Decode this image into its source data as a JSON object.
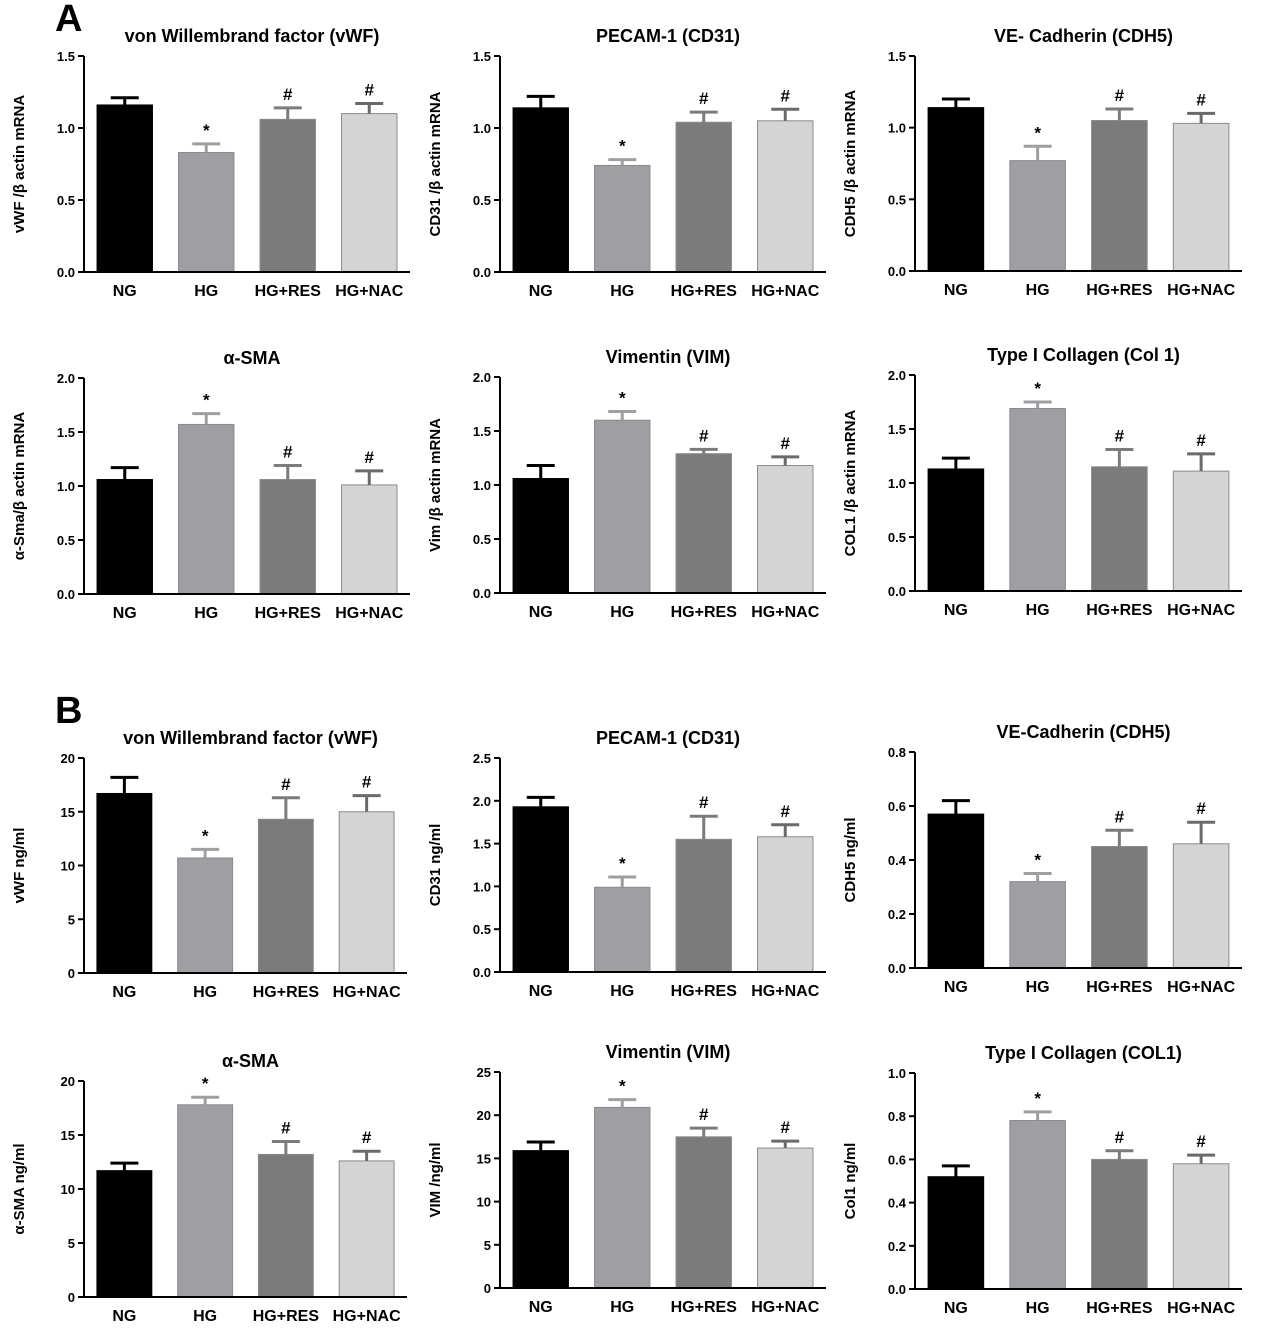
{
  "panels": [
    {
      "label": "A"
    },
    {
      "label": "B"
    }
  ],
  "chart_data": [
    {
      "type": "bar",
      "title": "von Willembrand factor (vWF)",
      "ylabel": "vWF /β actin mRNA",
      "categories": [
        "NG",
        "HG",
        "HG+RES",
        "HG+NAC"
      ],
      "values": [
        1.16,
        0.83,
        1.06,
        1.1
      ],
      "errors": [
        0.05,
        0.06,
        0.08,
        0.07
      ],
      "annotations": [
        "",
        "*",
        "#",
        "#"
      ],
      "ylim": [
        0,
        1.5
      ],
      "yticks": [
        0.0,
        0.5,
        1.0,
        1.5
      ],
      "tick_labels": [
        "0.0",
        "0.5",
        "1.0",
        "1.5"
      ]
    },
    {
      "type": "bar",
      "title": "PECAM-1 (CD31)",
      "ylabel": "CD31 /β actin mRNA",
      "categories": [
        "NG",
        "HG",
        "HG+RES",
        "HG+NAC"
      ],
      "values": [
        1.14,
        0.74,
        1.04,
        1.05
      ],
      "errors": [
        0.08,
        0.04,
        0.07,
        0.08
      ],
      "annotations": [
        "",
        "*",
        "#",
        "#"
      ],
      "ylim": [
        0,
        1.5
      ],
      "yticks": [
        0.0,
        0.5,
        1.0,
        1.5
      ],
      "tick_labels": [
        "0.0",
        "0.5",
        "1.0",
        "1.5"
      ]
    },
    {
      "type": "bar",
      "title": "VE- Cadherin (CDH5)",
      "ylabel": "CDH5 /β actin mRNA",
      "categories": [
        "NG",
        "HG",
        "HG+RES",
        "HG+NAC"
      ],
      "values": [
        1.14,
        0.77,
        1.05,
        1.03
      ],
      "errors": [
        0.06,
        0.1,
        0.08,
        0.07
      ],
      "annotations": [
        "",
        "*",
        "#",
        "#"
      ],
      "ylim": [
        0,
        1.5
      ],
      "yticks": [
        0.0,
        0.5,
        1.0,
        1.5
      ],
      "tick_labels": [
        "0.0",
        "0.5",
        "1.0",
        "1.5"
      ]
    },
    {
      "type": "bar",
      "title": "α-SMA",
      "ylabel": "α-Sma/β actin mRNA",
      "categories": [
        "NG",
        "HG",
        "HG+RES",
        "HG+NAC"
      ],
      "values": [
        1.06,
        1.57,
        1.06,
        1.01
      ],
      "errors": [
        0.11,
        0.1,
        0.13,
        0.13
      ],
      "annotations": [
        "",
        "*",
        "#",
        "#"
      ],
      "ylim": [
        0,
        2.0
      ],
      "yticks": [
        0.0,
        0.5,
        1.0,
        1.5,
        2.0
      ],
      "tick_labels": [
        "0.0",
        "0.5",
        "1.0",
        "1.5",
        "2.0"
      ]
    },
    {
      "type": "bar",
      "title": "Vimentin (VIM)",
      "ylabel": "Vim /β actin mRNA",
      "categories": [
        "NG",
        "HG",
        "HG+RES",
        "HG+NAC"
      ],
      "values": [
        1.06,
        1.6,
        1.29,
        1.18
      ],
      "errors": [
        0.12,
        0.08,
        0.04,
        0.08
      ],
      "annotations": [
        "",
        "*",
        "#",
        "#"
      ],
      "ylim": [
        0,
        2.0
      ],
      "yticks": [
        0.0,
        0.5,
        1.0,
        1.5,
        2.0
      ],
      "tick_labels": [
        "0.0",
        "0.5",
        "1.0",
        "1.5",
        "2.0"
      ]
    },
    {
      "type": "bar",
      "title": "Type I Collagen (Col 1)",
      "ylabel": "COL1 /β actin mRNA",
      "categories": [
        "NG",
        "HG",
        "HG+RES",
        "HG+NAC"
      ],
      "values": [
        1.13,
        1.69,
        1.15,
        1.11
      ],
      "errors": [
        0.1,
        0.06,
        0.16,
        0.16
      ],
      "annotations": [
        "",
        "*",
        "#",
        "#"
      ],
      "ylim": [
        0,
        2.0
      ],
      "yticks": [
        0.0,
        0.5,
        1.0,
        1.5,
        2.0
      ],
      "tick_labels": [
        "0.0",
        "0.5",
        "1.0",
        "1.5",
        "2.0"
      ]
    },
    {
      "type": "bar",
      "title": "von Willembrand factor (vWF)",
      "ylabel": "vWF ng/ml",
      "categories": [
        "NG",
        "HG",
        "HG+RES",
        "HG+NAC"
      ],
      "values": [
        16.7,
        10.7,
        14.3,
        15.0
      ],
      "errors": [
        1.5,
        0.8,
        2.0,
        1.5
      ],
      "annotations": [
        "",
        "*",
        "#",
        "#"
      ],
      "ylim": [
        0,
        20
      ],
      "yticks": [
        0,
        5,
        10,
        15,
        20
      ],
      "tick_labels": [
        "0",
        "5",
        "10",
        "15",
        "20"
      ]
    },
    {
      "type": "bar",
      "title": "PECAM-1 (CD31)",
      "ylabel": "CD31 ng/ml",
      "categories": [
        "NG",
        "HG",
        "HG+RES",
        "HG+NAC"
      ],
      "values": [
        1.93,
        0.99,
        1.55,
        1.58
      ],
      "errors": [
        0.11,
        0.12,
        0.27,
        0.14
      ],
      "annotations": [
        "",
        "*",
        "#",
        "#"
      ],
      "ylim": [
        0,
        2.5
      ],
      "yticks": [
        0.0,
        0.5,
        1.0,
        1.5,
        2.0,
        2.5
      ],
      "tick_labels": [
        "0.0",
        "0.5",
        "1.0",
        "1.5",
        "2.0",
        "2.5"
      ]
    },
    {
      "type": "bar",
      "title": "VE-Cadherin (CDH5)",
      "ylabel": "CDH5 ng/ml",
      "categories": [
        "NG",
        "HG",
        "HG+RES",
        "HG+NAC"
      ],
      "values": [
        0.57,
        0.32,
        0.45,
        0.46
      ],
      "errors": [
        0.05,
        0.03,
        0.06,
        0.08
      ],
      "annotations": [
        "",
        "*",
        "#",
        "#"
      ],
      "ylim": [
        0,
        0.8
      ],
      "yticks": [
        0.0,
        0.2,
        0.4,
        0.6,
        0.8
      ],
      "tick_labels": [
        "0.0",
        "0.2",
        "0.4",
        "0.6",
        "0.8"
      ]
    },
    {
      "type": "bar",
      "title": "α-SMA",
      "ylabel": "α-SMA ng/ml",
      "categories": [
        "NG",
        "HG",
        "HG+RES",
        "HG+NAC"
      ],
      "values": [
        11.7,
        17.8,
        13.2,
        12.6
      ],
      "errors": [
        0.7,
        0.7,
        1.2,
        0.9
      ],
      "annotations": [
        "",
        "*",
        "#",
        "#"
      ],
      "ylim": [
        0,
        20
      ],
      "yticks": [
        0,
        5,
        10,
        15,
        20
      ],
      "tick_labels": [
        "0",
        "5",
        "10",
        "15",
        "20"
      ]
    },
    {
      "type": "bar",
      "title": "Vimentin (VIM)",
      "ylabel": "VIM /ng/ml",
      "categories": [
        "NG",
        "HG",
        "HG+RES",
        "HG+NAC"
      ],
      "values": [
        15.9,
        20.9,
        17.5,
        16.2
      ],
      "errors": [
        1.0,
        0.9,
        1.0,
        0.8
      ],
      "annotations": [
        "",
        "*",
        "#",
        "#"
      ],
      "ylim": [
        0,
        25
      ],
      "yticks": [
        0,
        5,
        10,
        15,
        20,
        25
      ],
      "tick_labels": [
        "0",
        "5",
        "10",
        "15",
        "20",
        "25"
      ]
    },
    {
      "type": "bar",
      "title": "Type I Collagen (COL1)",
      "ylabel": "Col1 ng/ml",
      "categories": [
        "NG",
        "HG",
        "HG+RES",
        "HG+NAC"
      ],
      "values": [
        0.52,
        0.78,
        0.6,
        0.58
      ],
      "errors": [
        0.05,
        0.04,
        0.04,
        0.04
      ],
      "annotations": [
        "",
        "*",
        "#",
        "#"
      ],
      "ylim": [
        0,
        1.0
      ],
      "yticks": [
        0.0,
        0.2,
        0.4,
        0.6,
        0.8,
        1.0
      ],
      "tick_labels": [
        "0.0",
        "0.2",
        "0.4",
        "0.6",
        "0.8",
        "1.0"
      ]
    }
  ],
  "colors": {
    "bars": [
      "#000000",
      "#9f9fa3",
      "#7b7b7b",
      "#d4d4d4"
    ],
    "axis": "#000000",
    "text": "#000000"
  }
}
